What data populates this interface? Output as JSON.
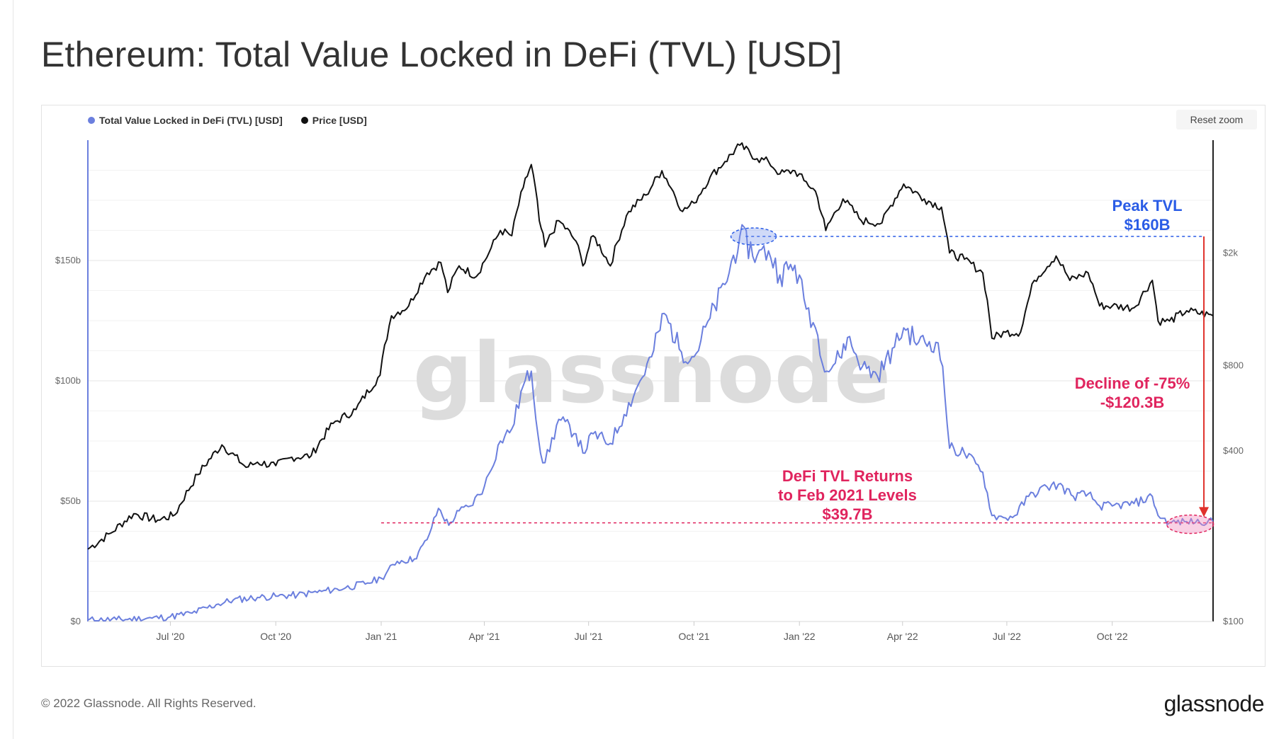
{
  "page_title": "Ethereum: Total Value Locked in DeFi (TVL) [USD]",
  "reset_zoom_label": "Reset zoom",
  "footer": {
    "copyright": "© 2022 Glassnode. All Rights Reserved.",
    "logo": "glassnode"
  },
  "colors": {
    "tvl": "#6b7fde",
    "price": "#111111",
    "annotation_blue": "#2a5ce6",
    "annotation_red": "#e0245e",
    "arrow_red": "#e0312b"
  },
  "chart_data": {
    "type": "line",
    "watermark": "glassnode",
    "x_ticks": [
      {
        "date": "2020-07-01",
        "label": "Jul '20"
      },
      {
        "date": "2020-10-01",
        "label": "Oct '20"
      },
      {
        "date": "2021-01-01",
        "label": "Jan '21"
      },
      {
        "date": "2021-04-01",
        "label": "Apr '21"
      },
      {
        "date": "2021-07-01",
        "label": "Jul '21"
      },
      {
        "date": "2021-10-01",
        "label": "Oct '21"
      },
      {
        "date": "2022-01-01",
        "label": "Jan '22"
      },
      {
        "date": "2022-04-01",
        "label": "Apr '22"
      },
      {
        "date": "2022-07-01",
        "label": "Jul '22"
      },
      {
        "date": "2022-10-01",
        "label": "Oct '22"
      }
    ],
    "x_range": [
      "2020-04-20",
      "2022-12-28"
    ],
    "y_left": {
      "scale": "linear",
      "range": [
        0,
        200
      ],
      "ticks": [
        {
          "value": 0,
          "label": "$0"
        },
        {
          "value": 50,
          "label": "$50b"
        },
        {
          "value": 100,
          "label": "$100b"
        },
        {
          "value": 150,
          "label": "$150b"
        }
      ]
    },
    "y_right": {
      "scale": "log",
      "range": [
        100,
        5000
      ],
      "ticks": [
        {
          "value": 100,
          "label": "$100"
        },
        {
          "value": 400,
          "label": "$400"
        },
        {
          "value": 800,
          "label": "$800"
        },
        {
          "value": 2000,
          "label": "$2k"
        }
      ]
    },
    "series": [
      {
        "name": "Total Value Locked in DeFi (TVL) [USD]",
        "axis": "left",
        "unit": "billion USD",
        "points": [
          [
            "2020-04-20",
            0.6
          ],
          [
            "2020-05-15",
            0.8
          ],
          [
            "2020-06-15",
            1.4
          ],
          [
            "2020-07-01",
            2.0
          ],
          [
            "2020-07-20",
            3.5
          ],
          [
            "2020-08-10",
            7.0
          ],
          [
            "2020-08-25",
            9.0
          ],
          [
            "2020-09-15",
            10.0
          ],
          [
            "2020-10-01",
            10.5
          ],
          [
            "2020-10-20",
            11.0
          ],
          [
            "2020-11-10",
            12.5
          ],
          [
            "2020-12-01",
            14.0
          ],
          [
            "2020-12-20",
            16.0
          ],
          [
            "2021-01-01",
            18.0
          ],
          [
            "2021-01-15",
            25.0
          ],
          [
            "2021-01-30",
            26.0
          ],
          [
            "2021-02-10",
            34.0
          ],
          [
            "2021-02-20",
            47.0
          ],
          [
            "2021-03-01",
            40.0
          ],
          [
            "2021-03-10",
            46.0
          ],
          [
            "2021-03-20",
            48.0
          ],
          [
            "2021-04-01",
            56.0
          ],
          [
            "2021-04-15",
            75.0
          ],
          [
            "2021-04-25",
            80.0
          ],
          [
            "2021-05-05",
            98.0
          ],
          [
            "2021-05-12",
            104.0
          ],
          [
            "2021-05-20",
            70.0
          ],
          [
            "2021-05-24",
            66.0
          ],
          [
            "2021-06-05",
            84.0
          ],
          [
            "2021-06-20",
            78.0
          ],
          [
            "2021-06-26",
            70.0
          ],
          [
            "2021-07-05",
            78.0
          ],
          [
            "2021-07-20",
            74.0
          ],
          [
            "2021-08-01",
            86.0
          ],
          [
            "2021-08-15",
            100.0
          ],
          [
            "2021-08-25",
            110.0
          ],
          [
            "2021-09-05",
            128.0
          ],
          [
            "2021-09-20",
            112.0
          ],
          [
            "2021-10-01",
            110.0
          ],
          [
            "2021-10-15",
            126.0
          ],
          [
            "2021-10-28",
            140.0
          ],
          [
            "2021-11-10",
            160.0
          ],
          [
            "2021-11-25",
            152.0
          ],
          [
            "2021-12-05",
            154.0
          ],
          [
            "2021-12-15",
            144.0
          ],
          [
            "2021-12-28",
            148.0
          ],
          [
            "2022-01-05",
            134.0
          ],
          [
            "2022-01-15",
            122.0
          ],
          [
            "2022-01-25",
            104.0
          ],
          [
            "2022-02-05",
            110.0
          ],
          [
            "2022-02-12",
            118.0
          ],
          [
            "2022-02-25",
            106.0
          ],
          [
            "2022-03-10",
            102.0
          ],
          [
            "2022-03-25",
            114.0
          ],
          [
            "2022-04-02",
            122.0
          ],
          [
            "2022-04-15",
            116.0
          ],
          [
            "2022-04-30",
            116.0
          ],
          [
            "2022-05-06",
            106.0
          ],
          [
            "2022-05-12",
            72.0
          ],
          [
            "2022-05-25",
            70.0
          ],
          [
            "2022-06-10",
            62.0
          ],
          [
            "2022-06-18",
            44.0
          ],
          [
            "2022-06-30",
            43.0
          ],
          [
            "2022-07-08",
            44.0
          ],
          [
            "2022-07-20",
            52.0
          ],
          [
            "2022-08-05",
            56.0
          ],
          [
            "2022-08-15",
            57.0
          ],
          [
            "2022-08-28",
            52.0
          ],
          [
            "2022-09-10",
            53.0
          ],
          [
            "2022-09-20",
            48.0
          ],
          [
            "2022-10-01",
            48.0
          ],
          [
            "2022-10-20",
            49.0
          ],
          [
            "2022-11-05",
            52.0
          ],
          [
            "2022-11-10",
            44.0
          ],
          [
            "2022-11-20",
            41.0
          ],
          [
            "2022-12-05",
            41.5
          ],
          [
            "2022-12-28",
            41.5
          ]
        ]
      },
      {
        "name": "Price [USD]",
        "axis": "right",
        "unit": "USD",
        "points": [
          [
            "2020-04-20",
            180
          ],
          [
            "2020-05-10",
            205
          ],
          [
            "2020-05-30",
            240
          ],
          [
            "2020-06-20",
            228
          ],
          [
            "2020-07-05",
            238
          ],
          [
            "2020-07-25",
            330
          ],
          [
            "2020-08-15",
            420
          ],
          [
            "2020-09-05",
            350
          ],
          [
            "2020-09-15",
            365
          ],
          [
            "2020-10-01",
            355
          ],
          [
            "2020-10-15",
            380
          ],
          [
            "2020-11-01",
            385
          ],
          [
            "2020-11-20",
            500
          ],
          [
            "2020-12-10",
            560
          ],
          [
            "2020-12-31",
            740
          ],
          [
            "2021-01-10",
            1200
          ],
          [
            "2021-01-25",
            1300
          ],
          [
            "2021-02-10",
            1700
          ],
          [
            "2021-02-22",
            1850
          ],
          [
            "2021-02-28",
            1450
          ],
          [
            "2021-03-10",
            1800
          ],
          [
            "2021-03-25",
            1650
          ],
          [
            "2021-04-05",
            2000
          ],
          [
            "2021-04-15",
            2400
          ],
          [
            "2021-04-25",
            2300
          ],
          [
            "2021-05-05",
            3400
          ],
          [
            "2021-05-12",
            4100
          ],
          [
            "2021-05-19",
            2600
          ],
          [
            "2021-05-24",
            2100
          ],
          [
            "2021-06-05",
            2600
          ],
          [
            "2021-06-20",
            2200
          ],
          [
            "2021-06-26",
            1800
          ],
          [
            "2021-07-05",
            2300
          ],
          [
            "2021-07-20",
            1800
          ],
          [
            "2021-08-05",
            2800
          ],
          [
            "2021-08-20",
            3200
          ],
          [
            "2021-09-03",
            3900
          ],
          [
            "2021-09-21",
            2800
          ],
          [
            "2021-10-01",
            3000
          ],
          [
            "2021-10-15",
            3700
          ],
          [
            "2021-10-28",
            4200
          ],
          [
            "2021-11-10",
            4800
          ],
          [
            "2021-11-25",
            4300
          ],
          [
            "2021-12-05",
            4200
          ],
          [
            "2021-12-15",
            3800
          ],
          [
            "2021-12-28",
            3900
          ],
          [
            "2022-01-05",
            3600
          ],
          [
            "2022-01-15",
            3300
          ],
          [
            "2022-01-24",
            2400
          ],
          [
            "2022-02-08",
            3100
          ],
          [
            "2022-02-24",
            2600
          ],
          [
            "2022-03-14",
            2550
          ],
          [
            "2022-04-02",
            3500
          ],
          [
            "2022-04-20",
            3100
          ],
          [
            "2022-05-05",
            2900
          ],
          [
            "2022-05-12",
            2000
          ],
          [
            "2022-05-25",
            1900
          ],
          [
            "2022-06-10",
            1700
          ],
          [
            "2022-06-18",
            1000
          ],
          [
            "2022-06-30",
            1050
          ],
          [
            "2022-07-13",
            1050
          ],
          [
            "2022-07-25",
            1600
          ],
          [
            "2022-08-13",
            1950
          ],
          [
            "2022-08-25",
            1600
          ],
          [
            "2022-09-10",
            1700
          ],
          [
            "2022-09-20",
            1300
          ],
          [
            "2022-10-01",
            1300
          ],
          [
            "2022-10-20",
            1280
          ],
          [
            "2022-11-05",
            1600
          ],
          [
            "2022-11-10",
            1150
          ],
          [
            "2022-11-20",
            1150
          ],
          [
            "2022-12-05",
            1250
          ],
          [
            "2022-12-28",
            1200
          ]
        ]
      }
    ],
    "annotations": {
      "peak": {
        "line1": "Peak TVL",
        "line2": "$160B",
        "value": 160,
        "date": "2021-11-22",
        "line_start": "2021-11-15",
        "line_end": "2022-12-20"
      },
      "decline": {
        "line1": "Decline of -75%",
        "line2": "-$120.3B",
        "arrow_date": "2022-12-20",
        "from_value": 160,
        "to_value": 44
      },
      "returns": {
        "line1": "DeFi TVL Returns",
        "line2": "to Feb 2021 Levels",
        "line3": "$39.7B",
        "value": 41,
        "line_start": "2021-01-01",
        "line_end": "2022-12-28",
        "highlight_date": "2022-12-08"
      }
    }
  }
}
